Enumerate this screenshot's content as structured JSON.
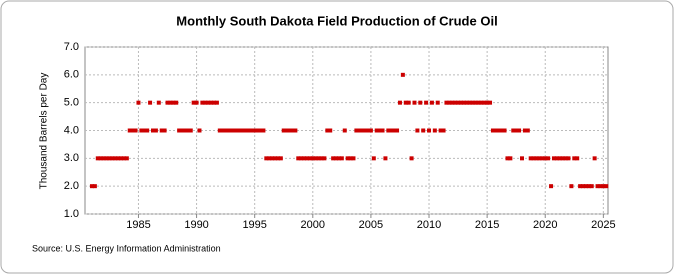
{
  "chart_data": {
    "type": "scatter",
    "title": "Monthly South Dakota Field Production of Crude Oil",
    "ylabel": "Thousand Barrels per Day",
    "source": "Source: U.S. Energy Information Administration",
    "color": "#cc0000",
    "grid": true,
    "xlim": [
      1980.4,
      2025.4
    ],
    "ylim": [
      1,
      7
    ],
    "xticks": [
      1985,
      1990,
      1995,
      2000,
      2005,
      2010,
      2015,
      2020,
      2025
    ],
    "yticks": [
      {
        "value": 1,
        "label": "1.0"
      },
      {
        "value": 2,
        "label": "2.0"
      },
      {
        "value": 3,
        "label": "3.0"
      },
      {
        "value": 4,
        "label": "4.0"
      },
      {
        "value": 5,
        "label": "5.0"
      },
      {
        "value": 6,
        "label": "6.0"
      },
      {
        "value": 7,
        "label": "7.0"
      }
    ],
    "x": [
      1981,
      1981.25,
      1981.5,
      1981.75,
      1982,
      1982.25,
      1982.5,
      1982.75,
      1983,
      1983.25,
      1983.5,
      1983.75,
      1984,
      1984.25,
      1984.5,
      1984.75,
      1985,
      1985.25,
      1985.5,
      1985.75,
      1986,
      1986.25,
      1986.5,
      1986.75,
      1987,
      1987.25,
      1987.5,
      1987.75,
      1988,
      1988.25,
      1988.5,
      1988.75,
      1989,
      1989.25,
      1989.5,
      1989.75,
      1990,
      1990.25,
      1990.5,
      1990.75,
      1991,
      1991.25,
      1991.5,
      1991.75,
      1992,
      1992.25,
      1992.5,
      1992.75,
      1993,
      1993.25,
      1993.5,
      1993.75,
      1994,
      1994.25,
      1994.5,
      1994.75,
      1995,
      1995.25,
      1995.5,
      1995.75,
      1996,
      1996.25,
      1996.5,
      1996.75,
      1997,
      1997.25,
      1997.5,
      1997.75,
      1998,
      1998.25,
      1998.5,
      1998.75,
      1999,
      1999.25,
      1999.5,
      1999.75,
      2000,
      2000.25,
      2000.5,
      2000.75,
      2001,
      2001.25,
      2001.5,
      2001.75,
      2002,
      2002.25,
      2002.5,
      2002.75,
      2003,
      2003.25,
      2003.5,
      2003.75,
      2004,
      2004.25,
      2004.5,
      2004.75,
      2005,
      2005.25,
      2005.5,
      2005.75,
      2006,
      2006.25,
      2006.5,
      2006.75,
      2007,
      2007.25,
      2007.5,
      2007.75,
      2008,
      2008.25,
      2008.5,
      2008.75,
      2009,
      2009.25,
      2009.5,
      2009.75,
      2010,
      2010.25,
      2010.5,
      2010.75,
      2011,
      2011.25,
      2011.5,
      2011.75,
      2012,
      2012.25,
      2012.5,
      2012.75,
      2013,
      2013.25,
      2013.5,
      2013.75,
      2014,
      2014.25,
      2014.5,
      2014.75,
      2015,
      2015.25,
      2015.5,
      2015.75,
      2016,
      2016.25,
      2016.5,
      2016.75,
      2017,
      2017.25,
      2017.5,
      2017.75,
      2018,
      2018.25,
      2018.5,
      2018.75,
      2019,
      2019.25,
      2019.5,
      2019.75,
      2020,
      2020.25,
      2020.5,
      2020.75,
      2021,
      2021.25,
      2021.5,
      2021.75,
      2022,
      2022.25,
      2022.5,
      2022.75,
      2023,
      2023.25,
      2023.5,
      2023.75,
      2024,
      2024.25,
      2024.5,
      2024.75,
      2025,
      2025.25
    ],
    "values": [
      2,
      2,
      3,
      3,
      3,
      3,
      3,
      3,
      3,
      3,
      3,
      3,
      3,
      4,
      4,
      4,
      5,
      4,
      4,
      4,
      5,
      4,
      4,
      5,
      4,
      4,
      5,
      5,
      5,
      5,
      4,
      4,
      4,
      4,
      4,
      5,
      5,
      4,
      5,
      5,
      5,
      5,
      5,
      5,
      4,
      4,
      4,
      4,
      4,
      4,
      4,
      4,
      4,
      4,
      4,
      4,
      4,
      4,
      4,
      4,
      3,
      3,
      3,
      3,
      3,
      3,
      4,
      4,
      4,
      4,
      4,
      3,
      3,
      3,
      3,
      3,
      3,
      3,
      3,
      3,
      3,
      4,
      4,
      3,
      3,
      3,
      3,
      4,
      3,
      3,
      3,
      4,
      4,
      4,
      4,
      4,
      4,
      3,
      4,
      4,
      4,
      3,
      4,
      4,
      4,
      4,
      5,
      6,
      5,
      5,
      3,
      5,
      4,
      5,
      4,
      5,
      4,
      5,
      4,
      5,
      4,
      4,
      5,
      5,
      5,
      5,
      5,
      5,
      5,
      5,
      5,
      5,
      5,
      5,
      5,
      5,
      5,
      5,
      4,
      4,
      4,
      4,
      4,
      3,
      3,
      4,
      4,
      4,
      3,
      4,
      4,
      3,
      3,
      3,
      3,
      3,
      3,
      3,
      2,
      3,
      3,
      3,
      3,
      3,
      3,
      2,
      3,
      3,
      2,
      2,
      2,
      2,
      2,
      3,
      2,
      2,
      2,
      2
    ]
  }
}
